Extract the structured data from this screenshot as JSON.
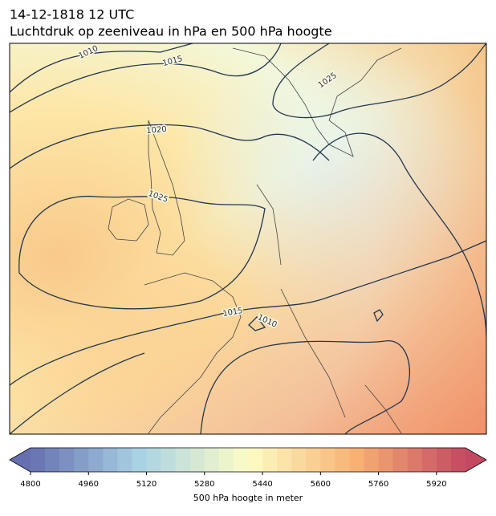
{
  "header": {
    "title": "14-12-1818 12 UTC",
    "subtitle": "Luchtdruk op zeeniveau in hPa en 500 hPa hoogte"
  },
  "map": {
    "isobar_labels": [
      "1010",
      "1015",
      "1020",
      "1025",
      "1025",
      "1015",
      "1010"
    ]
  },
  "colorbar": {
    "label": "500 hPa hoogte in meter",
    "range": [
      4800,
      6000
    ],
    "step": 40,
    "ticks": [
      4800,
      4960,
      5120,
      5280,
      5440,
      5600,
      5760,
      5920
    ],
    "colors": [
      "#6670b0",
      "#a9d2e4",
      "#fdfcc6",
      "#f7b173",
      "#c34862"
    ]
  }
}
